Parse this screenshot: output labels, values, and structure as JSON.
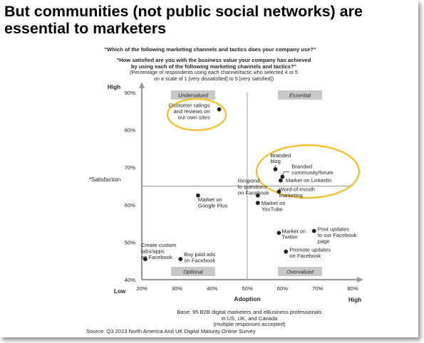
{
  "headline": {
    "line1": "But communities (not public social networks)  are",
    "line2": "essential to marketers"
  },
  "question1": "\"Which of the following marketing channels and tactics does your company use?\"",
  "question2_line1": "\"How satisfied are you with the business value your company has achieved",
  "question2_line2": "by using each of the following marketing channels and tactics?\"",
  "question2_note_line1": "(Percentage of respondents using each channel/tactic who selected 4 or 5",
  "question2_note_line2": "on a scale of 1 [very dissatisfied] to 5 [very satisfied])",
  "base_line1": "Base: 95 B2B digital marketers and eBusiness professionals",
  "base_line2": "in US, UK, and Canada",
  "base_line3": "(multiple responses accepted)",
  "source": "Source: Q3 2013 North America And UK Digital Maturity Online Survey",
  "colors": {
    "highlight_ellipse": "#f2c233",
    "quadrant_box": "#c8c8c8",
    "axis": "#999999",
    "dot": "#222222"
  },
  "chart_data": {
    "type": "scatter",
    "xlabel": "Adoption",
    "ylabel": "*Satisfaction",
    "x_low_label": "Low",
    "x_high_label": "High",
    "y_high_label": "High",
    "xlim": [
      20,
      80
    ],
    "ylim": [
      40,
      90
    ],
    "x_ticks": [
      "20%",
      "30%",
      "40%",
      "50%",
      "60%",
      "70%",
      "80%"
    ],
    "y_ticks": [
      "40%",
      "50%",
      "60%",
      "70%",
      "80%",
      "90%"
    ],
    "divider_x": 50,
    "divider_y": 65,
    "quadrants": {
      "top_left": "Undervalued",
      "top_right": "Essential",
      "bottom_left": "Optional",
      "bottom_right": "Overvalued"
    },
    "points": [
      {
        "label": "Customer ratings and reviews on our own sites",
        "x": 42,
        "y": 85.5,
        "highlight": true
      },
      {
        "label": "Branded blog",
        "x": 58,
        "y": 69.5,
        "highlight": true
      },
      {
        "label": "Branded community/forum",
        "x": 60,
        "y": 67.5,
        "highlight": true
      },
      {
        "label": "Market on LinkedIn",
        "x": 59.5,
        "y": 66.5,
        "highlight": true
      },
      {
        "label": "Respond to questions on Facebook",
        "x": 53,
        "y": 62.5
      },
      {
        "label": "Market on Google Plus",
        "x": 36,
        "y": 62.5
      },
      {
        "label": "Word-of-mouth marketing",
        "x": 59,
        "y": 63.5
      },
      {
        "label": "Market on YouTube",
        "x": 53,
        "y": 60.5
      },
      {
        "label": "Market on Twitter",
        "x": 59,
        "y": 52.5
      },
      {
        "label": "Post updates to our Facebook page",
        "x": 69,
        "y": 53
      },
      {
        "label": "Promote updates on Facebook",
        "x": 61,
        "y": 47.5
      },
      {
        "label": "Create custom tabs/apps on Facebook",
        "x": 21,
        "y": 45.5
      },
      {
        "label": "Buy paid ads on Facebook",
        "x": 31,
        "y": 45.5
      }
    ],
    "point_labels": [
      [
        "Customer ratings",
        "and reviews on",
        "our own sites"
      ],
      [
        "Branded",
        "blog"
      ],
      [
        "Branded",
        "community/forum"
      ],
      [
        "Market on LinkedIn"
      ],
      [
        "Respond",
        "to questions",
        "on Facebook"
      ],
      [
        "Market on",
        "Google Plus"
      ],
      [
        "Word-of-mouth",
        "marketing"
      ],
      [
        "Market on",
        "YouTube"
      ],
      [
        "Market on",
        "Twitter"
      ],
      [
        "Post updates",
        "to our Facebook",
        "page"
      ],
      [
        "Promote updates",
        "on Facebook"
      ],
      [
        "Create custom",
        "tabs/apps",
        "on Facebook"
      ],
      [
        "Buy paid ads",
        "on Facebook"
      ]
    ]
  }
}
